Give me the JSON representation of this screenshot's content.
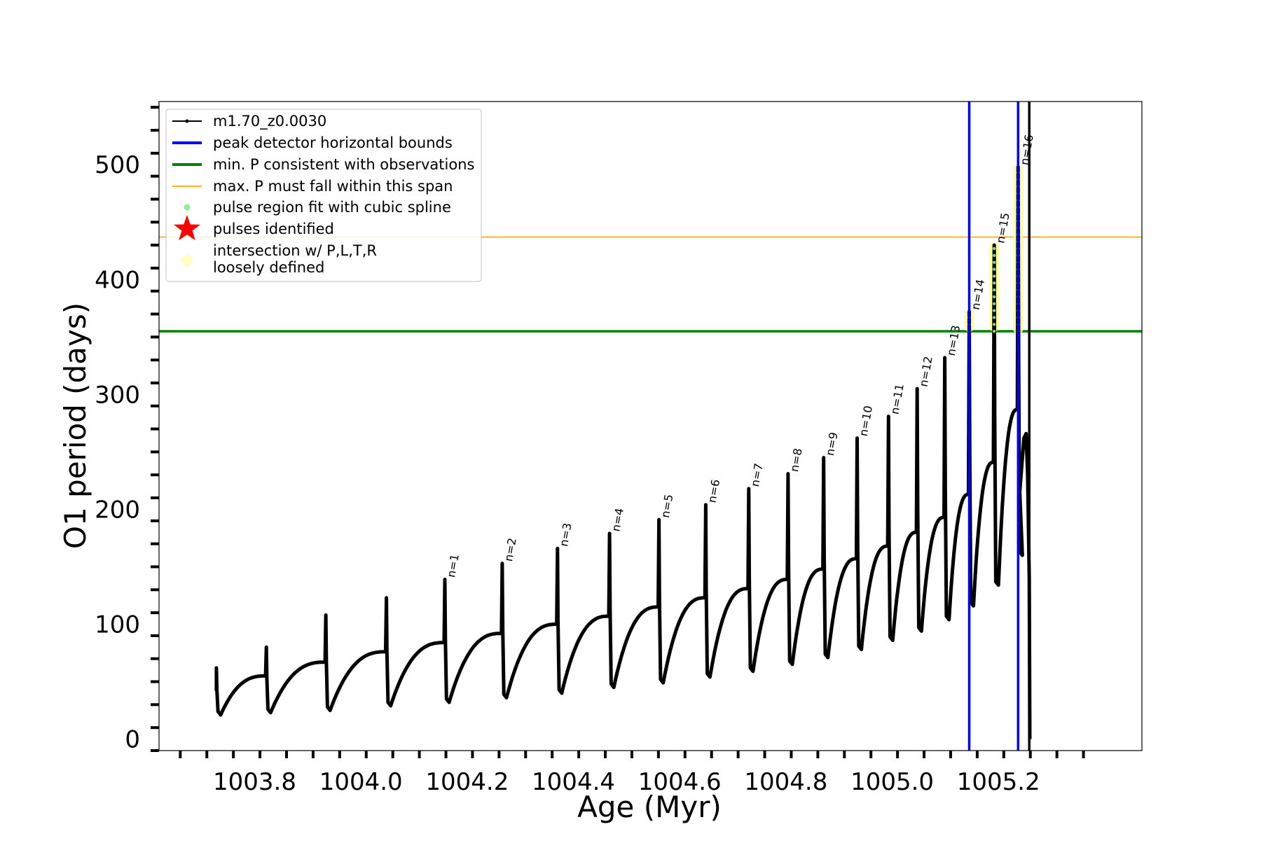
{
  "chart_data": {
    "type": "line",
    "title": "",
    "xlabel": "Age (Myr)",
    "ylabel": "O1 period (days)",
    "xlim": [
      1003.62,
      1005.47
    ],
    "ylim": [
      -10,
      555
    ],
    "x_ticks": [
      1003.8,
      1004.0,
      1004.2,
      1004.4,
      1004.6,
      1004.8,
      1005.0,
      1005.2
    ],
    "x_tick_labels": [
      "1003.8",
      "1004.0",
      "1004.2",
      "1004.4",
      "1004.6",
      "1004.8",
      "1005.0",
      "1005.2"
    ],
    "y_ticks": [
      0,
      100,
      200,
      300,
      400,
      500
    ],
    "y_tick_labels": [
      "0",
      "100",
      "200",
      "300",
      "400",
      "500"
    ],
    "grid": false,
    "legend_position": "top-left",
    "legend": [
      {
        "label": "m1.70_z0.0030",
        "kind": "line-marker",
        "color": "#000000"
      },
      {
        "label": "peak detector horizontal bounds",
        "kind": "line",
        "color": "#0000ff"
      },
      {
        "label": "min. P consistent with observations",
        "kind": "line",
        "color": "#008000"
      },
      {
        "label": "max. P must fall within this span",
        "kind": "thin-line",
        "color": "#ffa500"
      },
      {
        "label": "pulse region fit with cubic spline",
        "kind": "dot",
        "color": "#90ee90"
      },
      {
        "label": "pulses identified",
        "kind": "star",
        "color": "#ff0000"
      },
      {
        "label": "intersection w/ P,L,T,R\nloosely defined",
        "kind": "big-dot",
        "color": "#ffffc0"
      }
    ],
    "reference_lines": {
      "horizontal": [
        {
          "name": "min. P consistent with observations",
          "y": 355,
          "color": "#008000"
        },
        {
          "name": "max. P must fall within this span",
          "y": 437,
          "color": "#ffa500"
        }
      ],
      "vertical": [
        {
          "name": "peak detector horizontal bounds",
          "x": 1005.145,
          "color": "#0000ff"
        },
        {
          "name": "peak detector horizontal bounds",
          "x": 1005.237,
          "color": "#0000ff"
        },
        {
          "name": "end of track",
          "x": 1005.258,
          "color": "#000000"
        }
      ]
    },
    "series": [
      {
        "name": "m1.70_z0.0030",
        "color": "#000000",
        "start": {
          "x": 1003.728,
          "y": 42
        },
        "pulses": [
          {
            "x": 1003.728,
            "prev_max": null,
            "peak": 62,
            "min": 21
          },
          {
            "x": 1003.822,
            "prev_max": 55,
            "peak": 80,
            "min": 23
          },
          {
            "x": 1003.934,
            "prev_max": 67,
            "peak": 108,
            "min": 25
          },
          {
            "x": 1004.048,
            "prev_max": 76,
            "peak": 123,
            "min": 29
          },
          {
            "x": 1004.158,
            "prev_max": 84,
            "peak": 139,
            "min": 32,
            "label": "n=1"
          },
          {
            "x": 1004.266,
            "prev_max": 92,
            "peak": 153,
            "min": 36,
            "label": "n=2"
          },
          {
            "x": 1004.37,
            "prev_max": 100,
            "peak": 166,
            "min": 40,
            "label": "n=3"
          },
          {
            "x": 1004.468,
            "prev_max": 107,
            "peak": 179,
            "min": 45,
            "label": "n=4"
          },
          {
            "x": 1004.561,
            "prev_max": 115,
            "peak": 191,
            "min": 49,
            "label": "n=5"
          },
          {
            "x": 1004.649,
            "prev_max": 123,
            "peak": 204,
            "min": 54,
            "label": "n=6"
          },
          {
            "x": 1004.73,
            "prev_max": 131,
            "peak": 218,
            "min": 59,
            "label": "n=7"
          },
          {
            "x": 1004.804,
            "prev_max": 139,
            "peak": 231,
            "min": 65,
            "label": "n=8"
          },
          {
            "x": 1004.871,
            "prev_max": 148,
            "peak": 245,
            "min": 71,
            "label": "n=9"
          },
          {
            "x": 1004.934,
            "prev_max": 157,
            "peak": 262,
            "min": 78,
            "label": "n=10"
          },
          {
            "x": 1004.993,
            "prev_max": 168,
            "peak": 281,
            "min": 86,
            "label": "n=11"
          },
          {
            "x": 1005.047,
            "prev_max": 180,
            "peak": 305,
            "min": 94,
            "label": "n=12"
          },
          {
            "x": 1005.099,
            "prev_max": 193,
            "peak": 332,
            "min": 104,
            "label": "n=13"
          },
          {
            "x": 1005.145,
            "prev_max": 213,
            "peak": 372,
            "min": 116,
            "label": "n=14"
          },
          {
            "x": 1005.192,
            "prev_max": 241,
            "peak": 430,
            "min": 134,
            "label": "n=15"
          },
          {
            "x": 1005.237,
            "prev_max": 287,
            "peak": 498,
            "min": 160,
            "label": "n=16"
          }
        ],
        "end": [
          {
            "x": 1005.24,
            "y": 215
          },
          {
            "x": 1005.248,
            "y": 262
          },
          {
            "x": 1005.252,
            "y": 266
          },
          {
            "x": 1005.255,
            "y": 230
          },
          {
            "x": 1005.258,
            "y": 140
          },
          {
            "x": 1005.259,
            "y": 0
          }
        ]
      }
    ],
    "highlight_regions": [
      {
        "x": 1005.145,
        "y_min": 357,
        "y_max": 372,
        "color": "#ffff90"
      },
      {
        "x": 1005.192,
        "y_min": 357,
        "y_max": 430,
        "color": "#ffff90"
      },
      {
        "x": 1005.237,
        "y_min": 355,
        "y_max": 498,
        "color": "#ffff90"
      }
    ]
  }
}
